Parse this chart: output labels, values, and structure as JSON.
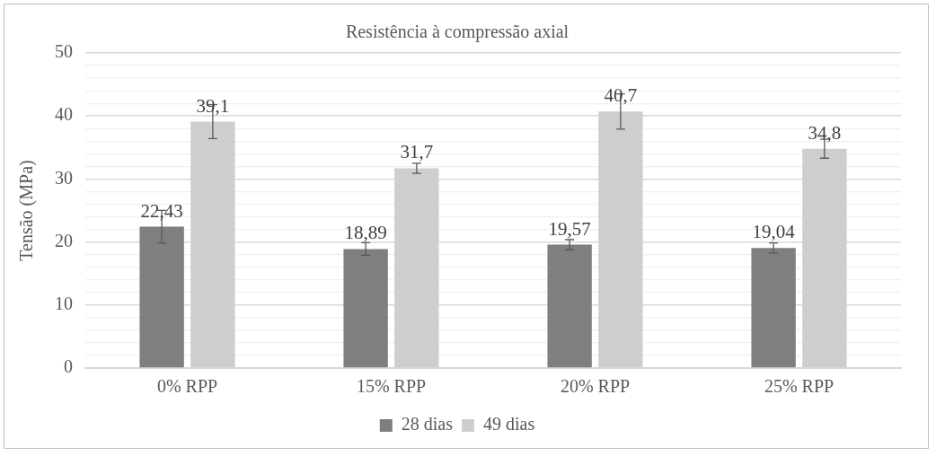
{
  "chart_data": {
    "type": "bar",
    "title": "Resistência à compressão axial",
    "ylabel": "Tensão (MPa)",
    "categories": [
      "0% RPP",
      "15% RPP",
      "20% RPP",
      "25% RPP"
    ],
    "series": [
      {
        "name": "28 dias",
        "color": "#7f7f7f",
        "values": [
          22.43,
          18.89,
          19.57,
          19.04
        ],
        "value_labels": [
          "22,43",
          "18,89",
          "19,57",
          "19,04"
        ],
        "errors": [
          2.6,
          1.0,
          0.8,
          0.8
        ]
      },
      {
        "name": "49 dias",
        "color": "#cfcecf",
        "values": [
          39.1,
          31.7,
          40.7,
          34.8
        ],
        "value_labels": [
          "39,1",
          "31,7",
          "40,7",
          "34,8"
        ],
        "errors": [
          2.7,
          0.8,
          2.8,
          1.5
        ]
      }
    ],
    "ylim": [
      0,
      50
    ],
    "yticks": [
      0,
      {
        "value": 2,
        "label": null
      },
      {
        "value": 4,
        "label": null
      },
      {
        "value": 6,
        "label": null
      },
      {
        "value": 8,
        "label": null
      },
      10,
      {
        "value": 12,
        "label": null
      },
      {
        "value": 14,
        "label": null
      },
      {
        "value": 16,
        "label": null
      },
      {
        "value": 18,
        "label": null
      },
      20,
      {
        "value": 22,
        "label": null
      },
      {
        "value": 24,
        "label": null
      },
      {
        "value": 26,
        "label": null
      },
      {
        "value": 28,
        "label": null
      },
      30,
      {
        "value": 32,
        "label": null
      },
      {
        "value": 34,
        "label": null
      },
      {
        "value": 36,
        "label": null
      },
      {
        "value": 38,
        "label": null
      },
      40,
      {
        "value": 42,
        "label": null
      },
      {
        "value": 44,
        "label": null
      },
      {
        "value": 46,
        "label": null
      },
      {
        "value": 48,
        "label": null
      },
      50
    ],
    "grid": "y",
    "legend": "bottom"
  }
}
